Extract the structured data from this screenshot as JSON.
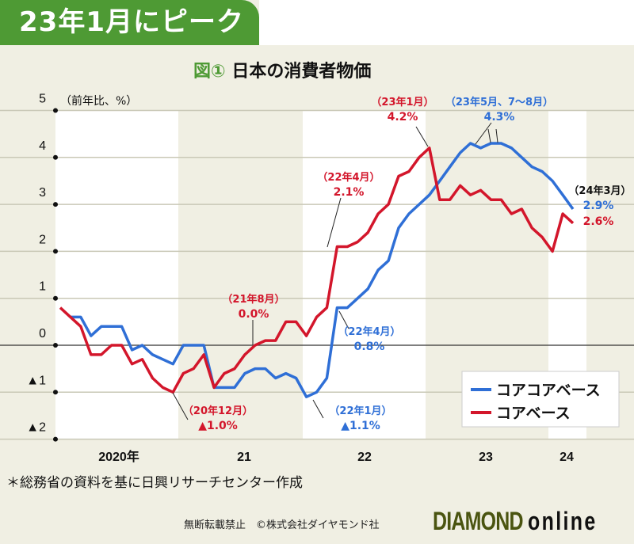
{
  "banner": "23年1月にピーク",
  "subtitle": {
    "figure": "図①",
    "title": "日本の消費者物価"
  },
  "note": "＊総務省の資料を基に日興リサーチセンター作成",
  "copyright": "無断転載禁止　©株式会社ダイヤモンド社",
  "logo": {
    "main": "DIAMOND",
    "sub": "online"
  },
  "colors": {
    "blue": "#2f6fd6",
    "red": "#d3162b",
    "green": "#4e9a34",
    "bg": "#f0efe3"
  },
  "chart_data": {
    "type": "line",
    "title": "日本の消費者物価",
    "ylabel": "（前年比、%）",
    "ylim": [
      -2,
      5
    ],
    "yticks": [
      5,
      4,
      3,
      2,
      1,
      0,
      -1,
      -2
    ],
    "ytick_labels": [
      "5",
      "4",
      "3",
      "2",
      "1",
      "0",
      "▲1",
      "▲2"
    ],
    "x_start": "2020-01",
    "x_end": "2024-03",
    "xtick_labels": [
      "2020年",
      "21",
      "22",
      "23",
      "24"
    ],
    "legend": {
      "placement": "bottom-right",
      "entries": [
        "コアコアベース",
        "コアベース"
      ]
    },
    "series": [
      {
        "name": "コアコアベース",
        "color": "#2f6fd6",
        "values": [
          null,
          0.6,
          0.6,
          0.2,
          0.4,
          0.4,
          0.4,
          -0.1,
          0.0,
          -0.2,
          -0.3,
          -0.4,
          0.0,
          0.0,
          0.0,
          -0.9,
          -0.9,
          -0.9,
          -0.6,
          -0.5,
          -0.5,
          -0.7,
          -0.6,
          -0.7,
          -1.1,
          -1.0,
          -0.7,
          0.8,
          0.8,
          1.0,
          1.2,
          1.6,
          1.8,
          2.5,
          2.8,
          3.0,
          3.2,
          3.5,
          3.8,
          4.1,
          4.3,
          4.2,
          4.3,
          4.3,
          4.2,
          4.0,
          3.8,
          3.7,
          3.5,
          3.2,
          2.9
        ]
      },
      {
        "name": "コアベース",
        "color": "#d3162b",
        "values": [
          0.8,
          0.6,
          0.4,
          -0.2,
          -0.2,
          0.0,
          0.0,
          -0.4,
          -0.3,
          -0.7,
          -0.9,
          -1.0,
          -0.6,
          -0.5,
          -0.2,
          -0.9,
          -0.6,
          -0.5,
          -0.2,
          0.0,
          0.1,
          0.1,
          0.5,
          0.5,
          0.2,
          0.6,
          0.8,
          2.1,
          2.1,
          2.2,
          2.4,
          2.8,
          3.0,
          3.6,
          3.7,
          4.0,
          4.2,
          3.1,
          3.1,
          3.4,
          3.2,
          3.3,
          3.1,
          3.1,
          2.8,
          2.9,
          2.5,
          2.3,
          2.0,
          2.8,
          2.6
        ]
      }
    ],
    "annotations": [
      {
        "label": "（20年12月）",
        "value": "▲1.0%",
        "color": "#d3162b"
      },
      {
        "label": "（21年8月）",
        "value": "0.0%",
        "color": "#d3162b"
      },
      {
        "label": "（22年4月）",
        "value": "2.1%",
        "color": "#d3162b"
      },
      {
        "label": "（23年1月）",
        "value": "4.2%",
        "color": "#d3162b"
      },
      {
        "label": "（23年5月、7〜8月）",
        "value": "4.3%",
        "color": "#2f6fd6"
      },
      {
        "label": "（22年1月）",
        "value": "▲1.1%",
        "color": "#2f6fd6"
      },
      {
        "label": "（22年4月）",
        "value": "0.8%",
        "color": "#2f6fd6"
      },
      {
        "label": "（24年3月）",
        "value": "2.9%",
        "value2": "2.6%",
        "color": "#111111"
      }
    ]
  }
}
